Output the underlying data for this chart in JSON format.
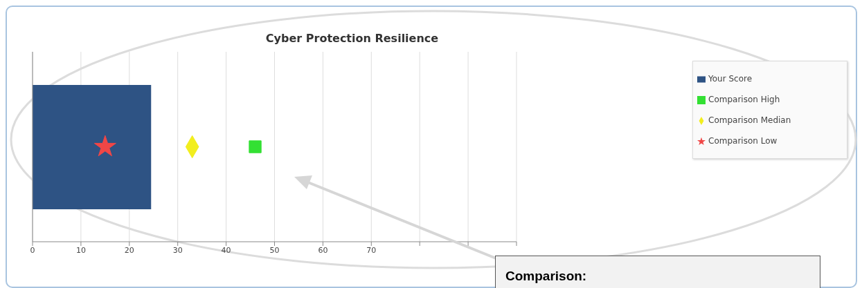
{
  "chart_data": {
    "type": "bar",
    "orientation": "horizontal",
    "title": "Cyber Protection Resilience",
    "categories": [
      null
    ],
    "series": [
      {
        "name": "Your Score",
        "color": "#2e5384",
        "values": [
          24.5
        ]
      },
      {
        "name": "Comparison High",
        "type": "scatter",
        "marker": "square",
        "color": "#33e033",
        "values": [
          46
        ]
      },
      {
        "name": "Comparison Median",
        "type": "scatter",
        "marker": "diamond",
        "color": "#f2ee1e",
        "values": [
          33
        ]
      },
      {
        "name": "Comparison Low",
        "type": "scatter",
        "marker": "star",
        "color": "#f04646",
        "values": [
          15
        ]
      }
    ],
    "xlim": [
      0,
      100
    ],
    "xticks": [
      0,
      10,
      20,
      30,
      40,
      50,
      60,
      70,
      {
        "value": 80,
        "label": null
      },
      {
        "value": 90,
        "label": null
      },
      {
        "value": 100,
        "label": null
      }
    ],
    "grid": "x",
    "legend": "right",
    "tick_labels": "x",
    "annotations": [
      "Comparison:"
    ]
  }
}
